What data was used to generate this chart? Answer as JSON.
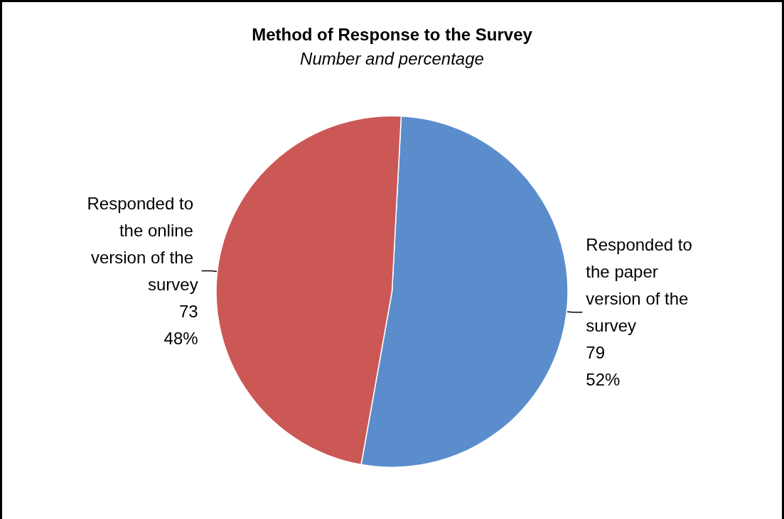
{
  "chart_data": {
    "type": "pie",
    "title": "Method of Response to the Survey",
    "subtitle": "Number and percentage",
    "categories": [
      "Responded to the paper version of the survey",
      "Responded to the online version of the survey"
    ],
    "values": [
      79,
      73
    ],
    "colors": [
      "#5b8dcd",
      "#cb5855"
    ],
    "value_labels": [
      "79\n52%",
      "73\n48%"
    ],
    "legend": false
  }
}
